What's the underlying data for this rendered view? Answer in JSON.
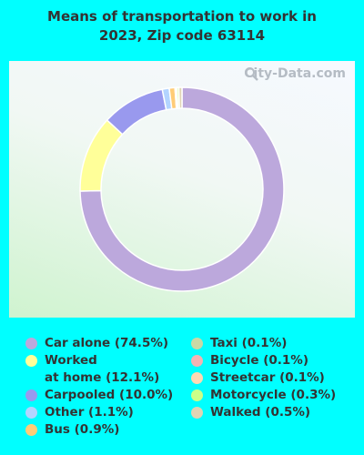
{
  "title": {
    "line1": "Means of transportation to work in",
    "line2": "2023, Zip code 63114"
  },
  "watermark": "City-Data.com",
  "chart_data": {
    "type": "pie",
    "donut": true,
    "slices": [
      {
        "label": "Car alone",
        "display": "Car alone (74.5%)",
        "value": 74.5,
        "color": "#bca8dc"
      },
      {
        "label": "Worked at home",
        "display": "Worked\nat home (12.1%)",
        "value": 12.1,
        "color": "#ffff99"
      },
      {
        "label": "Carpooled",
        "display": "Carpooled (10.0%)",
        "value": 10.0,
        "color": "#9999ee"
      },
      {
        "label": "Other",
        "display": "Other (1.1%)",
        "value": 1.1,
        "color": "#b3d4ff"
      },
      {
        "label": "Bus",
        "display": "Bus (0.9%)",
        "value": 0.9,
        "color": "#ffcc77"
      },
      {
        "label": "Taxi",
        "display": "Taxi (0.1%)",
        "value": 0.1,
        "color": "#c9d9a6"
      },
      {
        "label": "Bicycle",
        "display": "Bicycle (0.1%)",
        "value": 0.1,
        "color": "#f4b3b3"
      },
      {
        "label": "Streetcar",
        "display": "Streetcar (0.1%)",
        "value": 0.1,
        "color": "#ffd9b3"
      },
      {
        "label": "Motorcycle",
        "display": "Motorcycle (0.3%)",
        "value": 0.3,
        "color": "#ccff88"
      },
      {
        "label": "Walked",
        "display": "Walked (0.5%)",
        "value": 0.5,
        "color": "#e0d4b4"
      }
    ],
    "legend_placement": "bottom"
  }
}
